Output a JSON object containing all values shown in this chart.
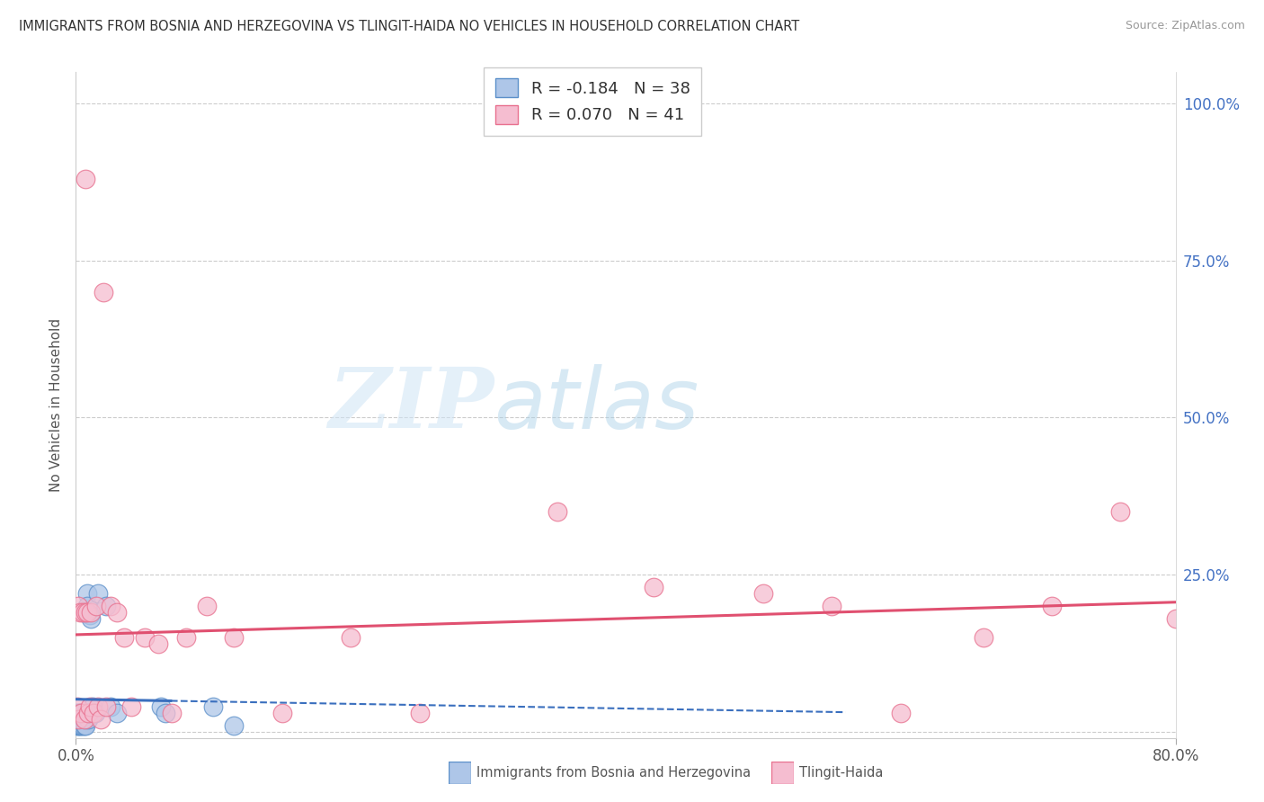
{
  "title": "IMMIGRANTS FROM BOSNIA AND HERZEGOVINA VS TLINGIT-HAIDA NO VEHICLES IN HOUSEHOLD CORRELATION CHART",
  "source": "Source: ZipAtlas.com",
  "ylabel": "No Vehicles in Household",
  "legend1_label": "Immigrants from Bosnia and Herzegovina",
  "legend2_label": "Tlingit-Haida",
  "R1": -0.184,
  "N1": 38,
  "R2": 0.07,
  "N2": 41,
  "color1": "#aec6e8",
  "color1_edge": "#5b8fc9",
  "color1_line": "#3a6fbe",
  "color2": "#f5bdd0",
  "color2_edge": "#e8708e",
  "color2_line": "#e05070",
  "background_color": "#ffffff",
  "grid_color": "#cccccc",
  "title_color": "#333333",
  "watermark_zip": "ZIP",
  "watermark_atlas": "atlas",
  "y_tick_positions": [
    0.0,
    0.25,
    0.5,
    0.75,
    1.0
  ],
  "y_tick_labels_right": [
    "",
    "25.0%",
    "50.0%",
    "75.0%",
    "100.0%"
  ],
  "xlim": [
    0.0,
    0.8
  ],
  "ylim": [
    -0.01,
    1.05
  ],
  "series1_x": [
    0.0005,
    0.001,
    0.001,
    0.0015,
    0.002,
    0.002,
    0.002,
    0.003,
    0.003,
    0.003,
    0.003,
    0.004,
    0.004,
    0.004,
    0.005,
    0.005,
    0.005,
    0.005,
    0.006,
    0.006,
    0.007,
    0.007,
    0.008,
    0.008,
    0.009,
    0.009,
    0.01,
    0.011,
    0.012,
    0.014,
    0.016,
    0.022,
    0.025,
    0.03,
    0.062,
    0.065,
    0.1,
    0.115
  ],
  "series1_y": [
    0.02,
    0.01,
    0.03,
    0.02,
    0.01,
    0.02,
    0.03,
    0.01,
    0.02,
    0.02,
    0.03,
    0.01,
    0.02,
    0.03,
    0.01,
    0.02,
    0.02,
    0.03,
    0.01,
    0.02,
    0.02,
    0.01,
    0.22,
    0.2,
    0.02,
    0.03,
    0.185,
    0.18,
    0.04,
    0.03,
    0.22,
    0.2,
    0.04,
    0.03,
    0.04,
    0.03,
    0.04,
    0.01
  ],
  "series2_x": [
    0.001,
    0.002,
    0.002,
    0.003,
    0.004,
    0.005,
    0.006,
    0.007,
    0.007,
    0.008,
    0.009,
    0.01,
    0.011,
    0.013,
    0.015,
    0.016,
    0.018,
    0.02,
    0.022,
    0.025,
    0.03,
    0.035,
    0.04,
    0.05,
    0.06,
    0.07,
    0.08,
    0.095,
    0.115,
    0.15,
    0.2,
    0.25,
    0.35,
    0.42,
    0.5,
    0.55,
    0.6,
    0.66,
    0.71,
    0.76,
    0.8
  ],
  "series2_y": [
    0.04,
    0.02,
    0.2,
    0.19,
    0.03,
    0.19,
    0.02,
    0.88,
    0.19,
    0.19,
    0.03,
    0.04,
    0.19,
    0.03,
    0.2,
    0.04,
    0.02,
    0.7,
    0.04,
    0.2,
    0.19,
    0.15,
    0.04,
    0.15,
    0.14,
    0.03,
    0.15,
    0.2,
    0.15,
    0.03,
    0.15,
    0.03,
    0.35,
    0.23,
    0.22,
    0.2,
    0.03,
    0.15,
    0.2,
    0.35,
    0.18
  ]
}
